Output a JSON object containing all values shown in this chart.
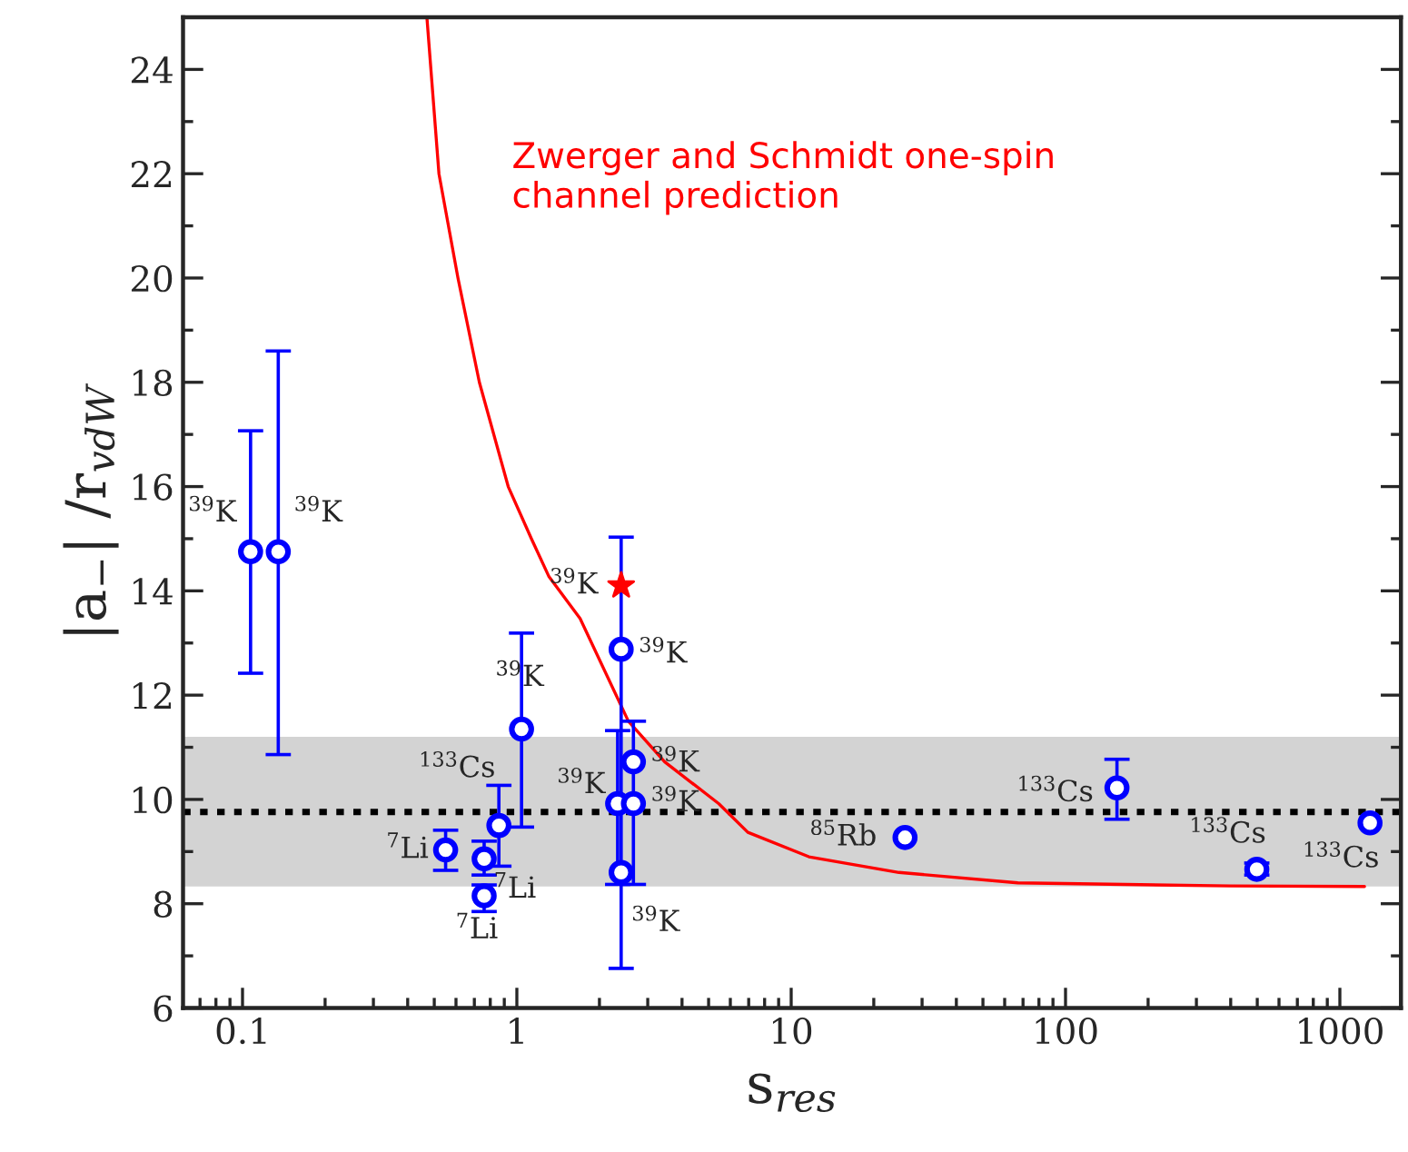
{
  "chart_data": {
    "type": "scatter",
    "xlabel": "s$_{res}$",
    "ylabel": "|a$_{−}$| /r$_{vdW}$",
    "log": "x",
    "xlim": [
      0.0607,
      1670
    ],
    "xticks": [
      0.1,
      1,
      10,
      100,
      1000
    ],
    "ylim": [
      6,
      25
    ],
    "yticks": [
      6,
      8,
      10,
      12,
      14,
      16,
      18,
      20,
      22,
      24
    ],
    "grid": false,
    "legend": false,
    "series": [
      {
        "type": "scatter",
        "marker": "circle",
        "color": "#0000ff",
        "x": [
          0.107,
          0.135,
          0.55,
          0.76,
          0.76,
          0.86,
          1.04,
          2.4,
          2.33,
          2.4,
          2.66,
          2.66,
          26,
          154,
          498,
          1288
        ],
        "values": [
          14.75,
          14.75,
          9.03,
          8.86,
          8.15,
          9.5,
          11.35,
          12.88,
          9.92,
          8.6,
          10.72,
          9.92,
          9.27,
          10.22,
          8.66,
          9.55
        ],
        "errors": [
          [
            12.42,
            17.07
          ],
          [
            10.86,
            18.6
          ],
          [
            8.64,
            9.41
          ],
          [
            8.55,
            9.2
          ],
          [
            7.85,
            8.36
          ],
          [
            8.72,
            10.27
          ],
          [
            9.47,
            13.19
          ],
          [
            6.76,
            15.03
          ],
          [
            8.37,
            11.32
          ],
          null,
          null,
          [
            8.37,
            11.5
          ],
          null,
          [
            9.62,
            10.77
          ],
          [
            8.55,
            8.78
          ],
          null
        ]
      },
      {
        "type": "scatter",
        "marker": "star",
        "color": "#ff0000",
        "x": [
          2.4
        ],
        "values": [
          14.1
        ]
      },
      {
        "type": "line",
        "name": "Zwerger and Schmidt one-spin\nchannel prediction",
        "color": "#ff0000",
        "line_style": "solid",
        "x": [
          0.47,
          0.52,
          0.61,
          0.73,
          0.93,
          1.13,
          1.31,
          1.7,
          2.55,
          3.46,
          5.44,
          6.95,
          11.6,
          24.7,
          67,
          398,
          1230
        ],
        "values": [
          25,
          22,
          20,
          18,
          16,
          15,
          14.27,
          13.47,
          11.5,
          10.72,
          9.92,
          9.37,
          8.9,
          8.6,
          8.4,
          8.34,
          8.33
        ]
      }
    ],
    "ref_lines": [
      {
        "axis": "y",
        "value": 9.76,
        "color": "#000000",
        "line_style": "dotted"
      }
    ],
    "bands": [
      {
        "axis": "y",
        "from": 8.33,
        "to": 11.2,
        "color": "#d3d3d3"
      }
    ],
    "annotations": [
      {
        "text": "$^{39}$K",
        "x": 0.107,
        "y": 14.75
      },
      {
        "text": "$^{39}$K",
        "x": 0.135,
        "y": 14.75
      },
      {
        "text": "$^{7}$Li",
        "x": 0.55,
        "y": 9.03
      },
      {
        "text": "$^{7}$Li",
        "x": 0.76,
        "y": 8.86
      },
      {
        "text": "$^{7}$Li",
        "x": 0.76,
        "y": 8.15
      },
      {
        "text": "$^{133}$Cs",
        "x": 0.86,
        "y": 9.5
      },
      {
        "text": "$^{39}$K",
        "x": 1.04,
        "y": 11.35
      },
      {
        "text": "$^{39}$K",
        "x": 2.4,
        "y": 14.1
      },
      {
        "text": "$^{39}$K",
        "x": 2.4,
        "y": 12.88
      },
      {
        "text": "$^{39}$K",
        "x": 2.33,
        "y": 9.92
      },
      {
        "text": "$^{39}$K",
        "x": 2.66,
        "y": 10.72
      },
      {
        "text": "$^{39}$K",
        "x": 2.66,
        "y": 9.92
      },
      {
        "text": "$^{39}$K",
        "x": 2.4,
        "y": 8.6
      },
      {
        "text": "$^{85}$Rb",
        "x": 26,
        "y": 9.27
      },
      {
        "text": "$^{133}$Cs",
        "x": 154,
        "y": 10.22
      },
      {
        "text": "$^{133}$Cs",
        "x": 498,
        "y": 8.66
      },
      {
        "text": "$^{133}$Cs",
        "x": 1288,
        "y": 9.55
      }
    ]
  }
}
